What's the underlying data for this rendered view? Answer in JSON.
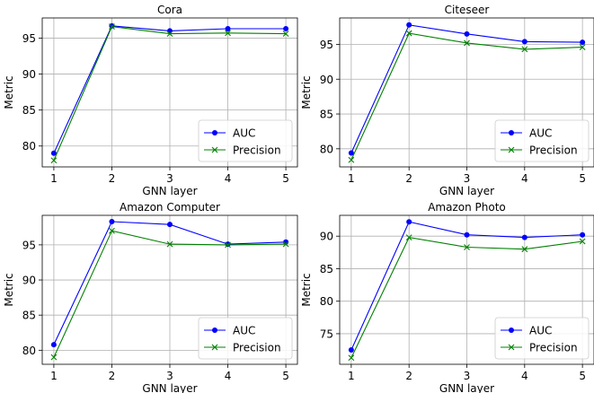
{
  "chart_data": [
    {
      "type": "line",
      "title": "Cora",
      "xlabel": "GNN layer",
      "ylabel": "Metric",
      "x": [
        1,
        2,
        3,
        4,
        5
      ],
      "xlim": [
        0.8,
        5.2
      ],
      "ylim": [
        77.1,
        97.8
      ],
      "yticks": [
        80,
        85,
        90,
        95
      ],
      "grid": true,
      "legend_position": "bottom-right",
      "series": [
        {
          "name": "AUC",
          "values": [
            79.0,
            96.7,
            96.0,
            96.3,
            96.3
          ],
          "color": "#0000ff",
          "marker": "circle"
        },
        {
          "name": "Precision",
          "values": [
            78.0,
            96.6,
            95.6,
            95.7,
            95.6
          ],
          "color": "#008000",
          "marker": "x"
        }
      ]
    },
    {
      "type": "line",
      "title": "Citeseer",
      "xlabel": "GNN layer",
      "ylabel": "Metric",
      "x": [
        1,
        2,
        3,
        4,
        5
      ],
      "xlim": [
        0.8,
        5.2
      ],
      "ylim": [
        77.4,
        98.8
      ],
      "yticks": [
        80,
        85,
        90,
        95
      ],
      "grid": true,
      "legend_position": "bottom-right",
      "series": [
        {
          "name": "AUC",
          "values": [
            79.4,
            97.8,
            96.5,
            95.4,
            95.3
          ],
          "color": "#0000ff",
          "marker": "circle"
        },
        {
          "name": "Precision",
          "values": [
            78.4,
            96.6,
            95.2,
            94.3,
            94.6
          ],
          "color": "#008000",
          "marker": "x"
        }
      ]
    },
    {
      "type": "line",
      "title": "Amazon Computer",
      "xlabel": "GNN layer",
      "ylabel": "Metric",
      "x": [
        1,
        2,
        3,
        4,
        5
      ],
      "xlim": [
        0.8,
        5.2
      ],
      "ylim": [
        78.0,
        99.2
      ],
      "yticks": [
        80,
        85,
        90,
        95
      ],
      "grid": true,
      "legend_position": "bottom-right",
      "series": [
        {
          "name": "AUC",
          "values": [
            80.8,
            98.3,
            97.9,
            95.1,
            95.4
          ],
          "color": "#0000ff",
          "marker": "circle"
        },
        {
          "name": "Precision",
          "values": [
            79.0,
            97.0,
            95.1,
            95.0,
            95.1
          ],
          "color": "#008000",
          "marker": "x"
        }
      ]
    },
    {
      "type": "line",
      "title": "Amazon Photo",
      "xlabel": "GNN layer",
      "ylabel": "Metric",
      "x": [
        1,
        2,
        3,
        4,
        5
      ],
      "xlim": [
        0.8,
        5.2
      ],
      "ylim": [
        70.3,
        93.2
      ],
      "yticks": [
        75,
        80,
        85,
        90
      ],
      "grid": true,
      "legend_position": "bottom-right",
      "series": [
        {
          "name": "AUC",
          "values": [
            72.5,
            92.2,
            90.2,
            89.8,
            90.2
          ],
          "color": "#0000ff",
          "marker": "circle"
        },
        {
          "name": "Precision",
          "values": [
            71.3,
            89.8,
            88.3,
            88.0,
            89.2
          ],
          "color": "#008000",
          "marker": "x"
        }
      ]
    }
  ]
}
